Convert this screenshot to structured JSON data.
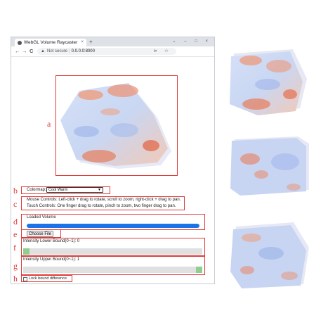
{
  "browser": {
    "tab_title": "WebGL Volume Raycaster",
    "tab_close": "×",
    "new_tab": "+",
    "window_controls": "⌄ – □ ×",
    "nav": {
      "back": "←",
      "forward": "→",
      "reload": "C"
    },
    "address": {
      "security_icon": "warning-icon",
      "not_secure": "Not secure",
      "url": "0.0.0.0:8000"
    }
  },
  "colormap": {
    "label": "Colormap:",
    "selected": "Cool Warm"
  },
  "controls": {
    "mouse": "Mouse Controls: Left-click + drag to rotate, scroll to zoom, right-click + drag to pan.",
    "touch": "Touch Controls: One finger drag to rotate, pinch to zoom, two finger drag to pan."
  },
  "loading": {
    "status": "Loaded Volume",
    "progress": 1.0
  },
  "file": {
    "button_label": "Choose File"
  },
  "intensity_lower": {
    "label": "Intensity Lower Bound(0~1): 0",
    "value": 0
  },
  "intensity_upper": {
    "label": "Intensity Upper Bound(0~1): 1",
    "value": 1
  },
  "lock": {
    "label": "Lock bound difference",
    "checked": false
  },
  "annotations": [
    "a",
    "b",
    "c",
    "d",
    "e",
    "f",
    "g",
    "h"
  ],
  "colors": {
    "annotation": "#e03a3a",
    "progress": "#1a73e8",
    "slider_thumb": "#8fce8f",
    "warm": "#e8734a",
    "cool": "#9fb6ea"
  }
}
